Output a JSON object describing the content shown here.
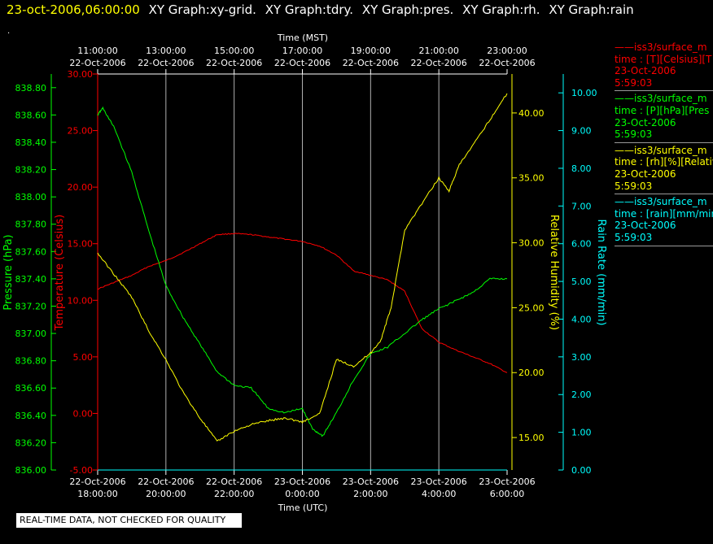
{
  "header": {
    "timestamp": "23-oct-2006,06:00:00",
    "graphs": [
      "XY Graph:xy-grid.",
      "XY Graph:tdry.",
      "XY Graph:pres.",
      "XY Graph:rh.",
      "XY Graph:rain"
    ],
    "dot": "."
  },
  "legend": [
    {
      "line1": "——iss3/surface_m",
      "line2": "time : [T][Celsius][T",
      "line3": "23-Oct-2006",
      "line4": "5:59:03",
      "color": "#ff0000"
    },
    {
      "line1": "——iss3/surface_m",
      "line2": "time : [P][hPa][Pres",
      "line3": "23-Oct-2006",
      "line4": "5:59:03",
      "color": "#00ff00"
    },
    {
      "line1": "——iss3/surface_m",
      "line2": "time : [rh][%][Relativ",
      "line3": "23-Oct-2006",
      "line4": "5:59:03",
      "color": "#ffff00"
    },
    {
      "line1": "——iss3/surface_m",
      "line2": "time : [rain][mm/min",
      "line3": "23-Oct-2006",
      "line4": "5:59:03",
      "color": "#00ffff"
    }
  ],
  "quality_note": "REAL-TIME DATA, NOT CHECKED FOR QUALITY",
  "chart_data": {
    "type": "line",
    "top_axis": {
      "label": "Time (MST)",
      "ticks": [
        {
          "time": "11:00:00",
          "date": "22-Oct-2006"
        },
        {
          "time": "13:00:00",
          "date": "22-Oct-2006"
        },
        {
          "time": "15:00:00",
          "date": "22-Oct-2006"
        },
        {
          "time": "17:00:00",
          "date": "22-Oct-2006"
        },
        {
          "time": "19:00:00",
          "date": "22-Oct-2006"
        },
        {
          "time": "21:00:00",
          "date": "22-Oct-2006"
        },
        {
          "time": "23:00:00",
          "date": "22-Oct-2006"
        }
      ]
    },
    "bottom_axis": {
      "label": "Time (UTC)",
      "ticks": [
        {
          "date": "22-Oct-2006",
          "time": "18:00:00"
        },
        {
          "date": "22-Oct-2006",
          "time": "20:00:00"
        },
        {
          "date": "22-Oct-2006",
          "time": "22:00:00"
        },
        {
          "date": "23-Oct-2006",
          "time": "0:00:00"
        },
        {
          "date": "23-Oct-2006",
          "time": "2:00:00"
        },
        {
          "date": "23-Oct-2006",
          "time": "4:00:00"
        },
        {
          "date": "23-Oct-2006",
          "time": "6:00:00"
        }
      ]
    },
    "x_range_utc": [
      "2006-10-22 18:00",
      "2006-10-23 06:00"
    ],
    "axes": {
      "pressure": {
        "label": "Pressure (hPa)",
        "min": 836.0,
        "max": 838.9,
        "step": 0.2,
        "ticks": [
          "836.00",
          "836.20",
          "836.40",
          "836.60",
          "836.80",
          "837.00",
          "837.20",
          "837.40",
          "837.60",
          "837.80",
          "838.00",
          "838.20",
          "838.40",
          "838.60",
          "838.80"
        ],
        "color": "#00ff00"
      },
      "temperature": {
        "label": "Temperature (Celsius)",
        "min": -5.0,
        "max": 30.0,
        "ticks": [
          "-5.00",
          "0.00",
          "5.00",
          "10.00",
          "15.00",
          "20.00",
          "25.00",
          "30.00"
        ],
        "color": "#ff0000"
      },
      "rh": {
        "label": "Relative Humidity (%)",
        "min": 12.5,
        "max": 43.0,
        "ticks": [
          "15.00",
          "20.00",
          "25.00",
          "30.00",
          "35.00",
          "40.00"
        ],
        "color": "#ffff00"
      },
      "rain": {
        "label": "Rain Rate (mm/min)",
        "min": 0.0,
        "max": 10.5,
        "ticks": [
          "0.00",
          "1.00",
          "2.00",
          "3.00",
          "4.00",
          "5.00",
          "6.00",
          "7.00",
          "8.00",
          "9.00",
          "10.00"
        ],
        "color": "#00ffff"
      }
    },
    "grid": "vertical",
    "series": [
      {
        "name": "iss3/surface_m T",
        "axis": "temperature",
        "color": "#ff0000",
        "x_hours_utc": [
          18.0,
          18.5,
          19.0,
          19.5,
          20.0,
          20.5,
          21.0,
          21.5,
          22.0,
          22.5,
          23.0,
          23.5,
          24.0,
          24.5,
          25.0,
          25.5,
          26.0,
          26.5,
          27.0,
          27.5,
          28.0,
          28.5,
          29.0,
          29.5,
          30.0
        ],
        "y": [
          11.0,
          11.6,
          12.2,
          13.0,
          13.5,
          14.2,
          15.0,
          15.8,
          15.9,
          15.8,
          15.6,
          15.4,
          15.2,
          14.8,
          14.0,
          12.6,
          12.2,
          11.8,
          10.8,
          7.5,
          6.3,
          5.6,
          5.0,
          4.4,
          3.6
        ]
      },
      {
        "name": "iss3/surface_m P",
        "axis": "pressure",
        "color": "#00ff00",
        "x_hours_utc": [
          18.0,
          18.15,
          18.5,
          19.0,
          19.5,
          20.0,
          20.5,
          21.0,
          21.5,
          22.0,
          22.5,
          23.0,
          23.5,
          24.0,
          24.3,
          24.6,
          25.0,
          25.5,
          26.0,
          26.5,
          27.0,
          27.5,
          28.0,
          28.5,
          29.0,
          29.5,
          30.0
        ],
        "y": [
          838.6,
          838.65,
          838.5,
          838.18,
          837.75,
          837.35,
          837.12,
          836.92,
          836.72,
          836.62,
          836.6,
          836.45,
          836.42,
          836.45,
          836.3,
          836.25,
          836.42,
          836.66,
          836.85,
          836.9,
          837.0,
          837.1,
          837.18,
          837.24,
          837.3,
          837.4,
          837.4
        ]
      },
      {
        "name": "iss3/surface_m rh",
        "axis": "rh",
        "color": "#ffff00",
        "x_hours_utc": [
          18.0,
          18.5,
          19.0,
          19.5,
          20.0,
          20.5,
          21.0,
          21.5,
          22.0,
          22.5,
          23.0,
          23.5,
          24.0,
          24.5,
          25.0,
          25.5,
          26.0,
          26.3,
          26.6,
          27.0,
          27.5,
          28.0,
          28.3,
          28.6,
          29.0,
          29.5,
          30.0
        ],
        "y": [
          29.2,
          27.5,
          25.8,
          23.2,
          21.0,
          18.5,
          16.5,
          14.7,
          15.5,
          16.0,
          16.3,
          16.5,
          16.2,
          16.8,
          21.0,
          20.5,
          21.5,
          22.5,
          25.0,
          31.0,
          33.0,
          35.0,
          34.0,
          36.0,
          37.5,
          39.5,
          41.5
        ]
      },
      {
        "name": "iss3/surface_m rain",
        "axis": "rain",
        "color": "#00ffff",
        "x_hours_utc": [
          18.0,
          30.0
        ],
        "y": [
          0.0,
          0.0
        ]
      }
    ]
  }
}
